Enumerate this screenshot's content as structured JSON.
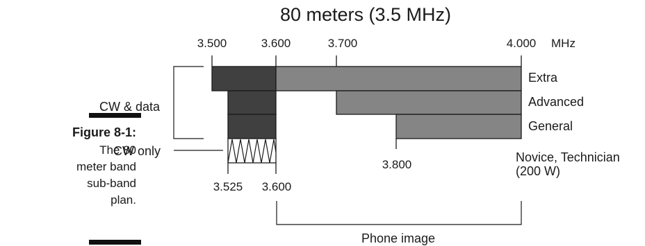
{
  "diagram": {
    "title": "80 meters (3.5 MHz)",
    "unit": "MHz",
    "top_ticks": [
      "3.500",
      "3.600",
      "3.700",
      "4.000"
    ],
    "bottom_ticks": [
      "3.525",
      "3.600"
    ],
    "mid_tick": "3.800",
    "license_classes": {
      "extra": "Extra",
      "advanced": "Advanced",
      "general": "General",
      "novice": "Novice, Technician",
      "novice_power": "(200 W)"
    },
    "labels": {
      "cw_data": "CW & data",
      "cw_only": "CW only",
      "phone": "Phone image"
    },
    "colors": {
      "cw_data_fill": "#404040",
      "phone_fill": "#858585",
      "outline": "#1a1a1a"
    }
  },
  "caption": {
    "label": "Figure 8-1:",
    "lines": [
      "The 80",
      "meter band",
      "sub-band",
      "plan."
    ]
  }
}
